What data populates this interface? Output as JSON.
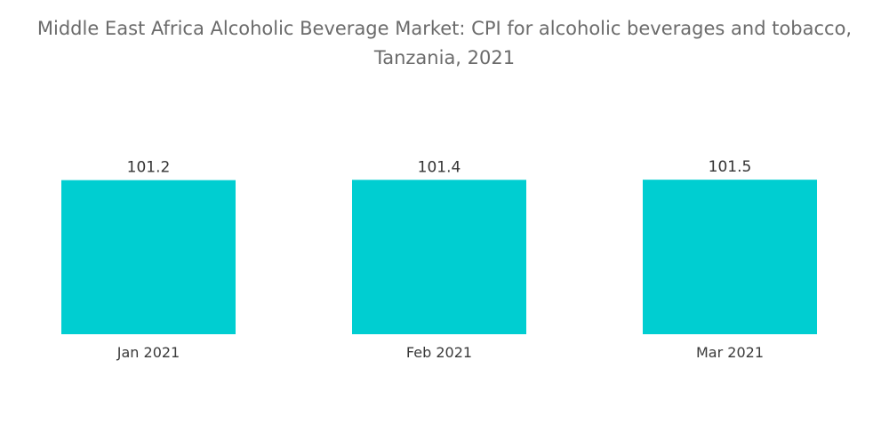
{
  "chart_data": {
    "type": "bar",
    "title_line1": "Middle East Africa Alcoholic Beverage Market: CPI for alcoholic beverages and tobacco,",
    "title_line2": "Tanzania, 2021",
    "categories": [
      "Jan 2021",
      "Feb 2021",
      "Mar 2021"
    ],
    "values": [
      101.2,
      101.4,
      101.5
    ],
    "value_labels": [
      "101.2",
      "101.4",
      "101.5"
    ],
    "bar_color": "#00CED1",
    "grid": false,
    "legend": "none"
  }
}
